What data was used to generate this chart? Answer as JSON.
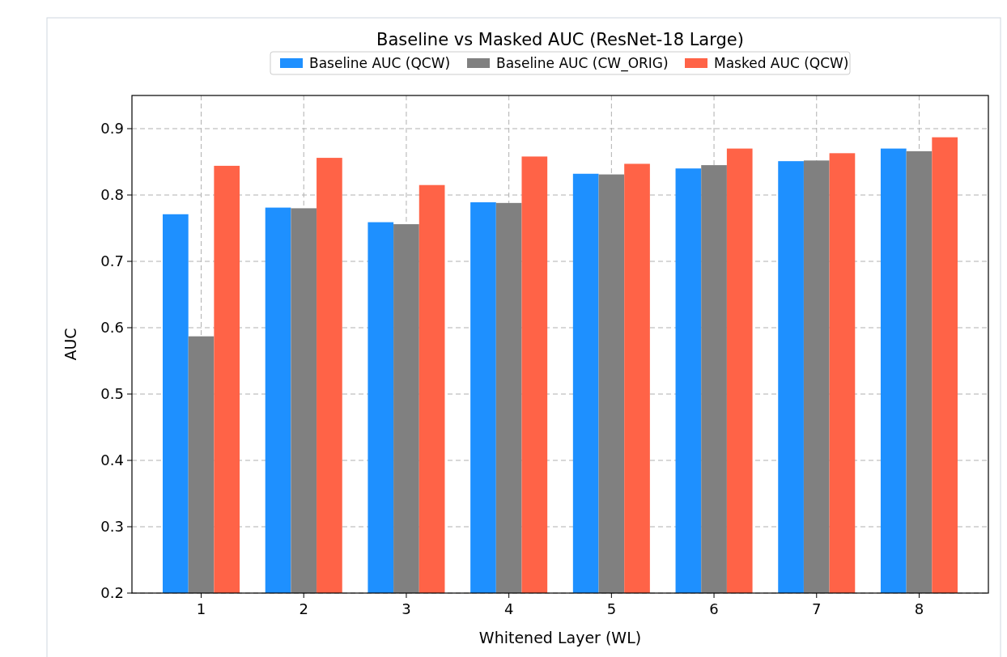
{
  "chart_data": {
    "type": "bar",
    "title": "Baseline vs Masked AUC (ResNet-18 Large)",
    "xlabel": "Whitened Layer (WL)",
    "ylabel": "AUC",
    "categories": [
      "1",
      "2",
      "3",
      "4",
      "5",
      "6",
      "7",
      "8"
    ],
    "series": [
      {
        "name": "Baseline AUC (QCW)",
        "color": "#1e90ff",
        "values": [
          0.771,
          0.781,
          0.759,
          0.789,
          0.832,
          0.84,
          0.851,
          0.87
        ]
      },
      {
        "name": "Baseline AUC (CW_ORIG)",
        "color": "#808080",
        "values": [
          0.587,
          0.78,
          0.756,
          0.788,
          0.831,
          0.845,
          0.852,
          0.866
        ]
      },
      {
        "name": "Masked AUC (QCW)",
        "color": "#ff6347",
        "values": [
          0.844,
          0.856,
          0.815,
          0.858,
          0.847,
          0.87,
          0.863,
          0.887
        ]
      }
    ],
    "ylim": [
      0.2,
      0.95
    ],
    "yticks": [
      0.2,
      0.3,
      0.4,
      0.5,
      0.6,
      0.7,
      0.8,
      0.9
    ],
    "grid": true,
    "legend": "top"
  }
}
